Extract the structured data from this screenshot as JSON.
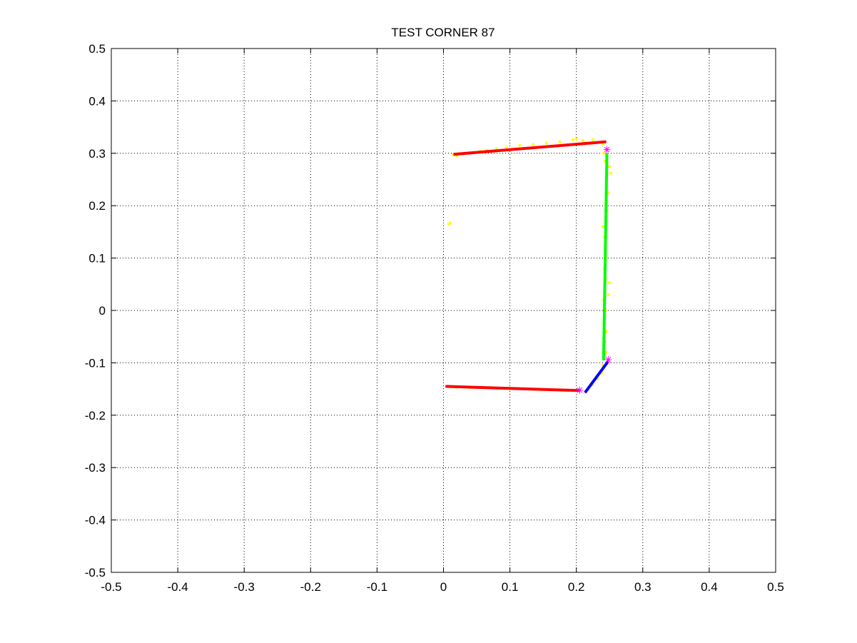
{
  "chart_data": {
    "type": "scatter",
    "title": "TEST CORNER 87",
    "xlabel": "",
    "ylabel": "",
    "xlim": [
      -0.5,
      0.5
    ],
    "ylim": [
      -0.5,
      0.5
    ],
    "grid": true,
    "x_ticks": [
      -0.5,
      -0.4,
      -0.3,
      -0.2,
      -0.1,
      0,
      0.1,
      0.2,
      0.3,
      0.4,
      0.5
    ],
    "x_tick_labels": [
      "-0.5",
      "-0.4",
      "-0.3",
      "-0.2",
      "-0.1",
      "0",
      "0.1",
      "0.2",
      "0.3",
      "0.4",
      "0.5"
    ],
    "y_ticks": [
      0.5,
      0.4,
      0.3,
      0.2,
      0.1,
      0,
      -0.1,
      -0.2,
      -0.3,
      -0.4,
      -0.5
    ],
    "y_tick_labels": [
      "0.5",
      "0.4",
      "0.3",
      "0.2",
      "0.1",
      "0",
      "-0.1",
      "-0.2",
      "-0.3",
      "-0.4",
      "-0.5"
    ],
    "scan_points": {
      "color": "#ffff00",
      "points": [
        [
          0.008,
          0.165
        ],
        [
          0.01,
          0.167
        ],
        [
          0.015,
          0.297
        ],
        [
          0.02,
          0.295
        ],
        [
          0.025,
          0.299
        ],
        [
          0.03,
          0.298
        ],
        [
          0.045,
          0.302
        ],
        [
          0.055,
          0.304
        ],
        [
          0.065,
          0.306
        ],
        [
          0.08,
          0.309
        ],
        [
          0.095,
          0.311
        ],
        [
          0.115,
          0.315
        ],
        [
          0.135,
          0.317
        ],
        [
          0.155,
          0.319
        ],
        [
          0.175,
          0.322
        ],
        [
          0.195,
          0.326
        ],
        [
          0.2,
          0.327
        ],
        [
          0.21,
          0.324
        ],
        [
          0.225,
          0.326
        ],
        [
          0.232,
          0.321
        ],
        [
          0.24,
          0.318
        ],
        [
          0.241,
          0.3
        ],
        [
          0.243,
          0.285
        ],
        [
          0.25,
          0.275
        ],
        [
          0.252,
          0.262
        ],
        [
          0.245,
          0.245
        ],
        [
          0.248,
          0.225
        ],
        [
          0.244,
          0.205
        ],
        [
          0.246,
          0.19
        ],
        [
          0.245,
          0.17
        ],
        [
          0.24,
          0.16
        ],
        [
          0.242,
          0.14
        ],
        [
          0.243,
          0.12
        ],
        [
          0.245,
          0.1
        ],
        [
          0.242,
          0.08
        ],
        [
          0.244,
          0.06
        ],
        [
          0.25,
          0.053
        ],
        [
          0.243,
          0.04
        ],
        [
          0.248,
          0.03
        ],
        [
          0.241,
          0.02
        ],
        [
          0.244,
          0.0
        ],
        [
          0.242,
          -0.02
        ],
        [
          0.245,
          -0.04
        ],
        [
          0.243,
          -0.06
        ],
        [
          0.245,
          -0.08
        ],
        [
          0.24,
          -0.105
        ],
        [
          0.238,
          -0.12
        ],
        [
          0.232,
          -0.13
        ],
        [
          0.225,
          -0.142
        ],
        [
          0.218,
          -0.152
        ],
        [
          0.02,
          -0.147
        ],
        [
          0.04,
          -0.148
        ],
        [
          0.06,
          -0.147
        ],
        [
          0.08,
          -0.149
        ],
        [
          0.1,
          -0.15
        ],
        [
          0.12,
          -0.149
        ],
        [
          0.15,
          -0.151
        ],
        [
          0.18,
          -0.152
        ]
      ]
    },
    "line_segments": [
      {
        "color": "#ff0000",
        "x": [
          0.015,
          0.245
        ],
        "y": [
          0.298,
          0.322
        ]
      },
      {
        "color": "#00ff00",
        "x": [
          0.241,
          0.246
        ],
        "y": [
          -0.095,
          0.3
        ]
      },
      {
        "color": "#ff0000",
        "x": [
          0.003,
          0.205
        ],
        "y": [
          -0.145,
          -0.153
        ]
      },
      {
        "color": "#0000ff",
        "x": [
          0.213,
          0.248
        ],
        "y": [
          -0.157,
          -0.097
        ]
      }
    ],
    "corner_markers": {
      "color": "#ff00ff",
      "symbol": "*",
      "points": [
        [
          0.246,
          0.307
        ],
        [
          0.248,
          -0.094
        ],
        [
          0.205,
          -0.152
        ]
      ]
    }
  }
}
